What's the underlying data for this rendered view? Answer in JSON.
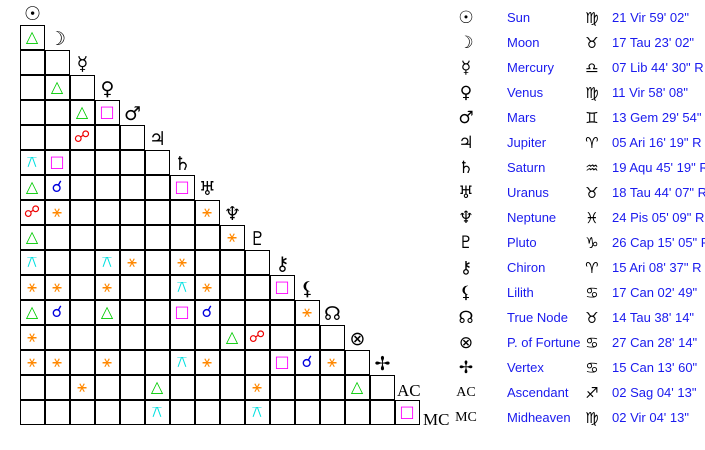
{
  "planets": [
    {
      "name": "Sun",
      "icon": "sun-icon",
      "glyph": "☉",
      "sign_icon": "virgo-icon",
      "sign_glyph": "♍",
      "position": "21 Vir 59' 02\""
    },
    {
      "name": "Moon",
      "icon": "moon-icon",
      "glyph": "☽",
      "sign_icon": "taurus-icon",
      "sign_glyph": "♉",
      "position": "17 Tau 23' 02\""
    },
    {
      "name": "Mercury",
      "icon": "mercury-icon",
      "glyph": "☿",
      "sign_icon": "libra-icon",
      "sign_glyph": "♎",
      "position": "07 Lib 44' 30\" R"
    },
    {
      "name": "Venus",
      "icon": "venus-icon",
      "glyph": "♀",
      "sign_icon": "virgo-icon",
      "sign_glyph": "♍",
      "position": "11 Vir 58' 08\""
    },
    {
      "name": "Mars",
      "icon": "mars-icon",
      "glyph": "♂",
      "sign_icon": "gemini-icon",
      "sign_glyph": "♊",
      "position": "13 Gem 29' 54\""
    },
    {
      "name": "Jupiter",
      "icon": "jupiter-icon",
      "glyph": "♃",
      "sign_icon": "aries-icon",
      "sign_glyph": "♈",
      "position": "05 Ari 16' 19\" R"
    },
    {
      "name": "Saturn",
      "icon": "saturn-icon",
      "glyph": "♄",
      "sign_icon": "aquarius-icon",
      "sign_glyph": "♒",
      "position": "19 Aqu 45' 19\" R"
    },
    {
      "name": "Uranus",
      "icon": "uranus-icon",
      "glyph": "♅",
      "sign_icon": "taurus-icon",
      "sign_glyph": "♉",
      "position": "18 Tau 44' 07\" R"
    },
    {
      "name": "Neptune",
      "icon": "neptune-icon",
      "glyph": "♆",
      "sign_icon": "pisces-icon",
      "sign_glyph": "♓",
      "position": "24 Pis 05' 09\" R"
    },
    {
      "name": "Pluto",
      "icon": "pluto-icon",
      "glyph": "♇",
      "sign_icon": "capricorn-icon",
      "sign_glyph": "♑",
      "position": "26 Cap 15' 05\" R"
    },
    {
      "name": "Chiron",
      "icon": "chiron-icon",
      "glyph": "⚷",
      "sign_icon": "aries-icon",
      "sign_glyph": "♈",
      "position": "15 Ari 08' 37\" R"
    },
    {
      "name": "Lilith",
      "icon": "lilith-icon",
      "glyph": "⚸",
      "sign_icon": "cancer-icon",
      "sign_glyph": "♋",
      "position": "17 Can 02' 49\""
    },
    {
      "name": "True Node",
      "icon": "true-node-icon",
      "glyph": "☊",
      "sign_icon": "taurus-icon",
      "sign_glyph": "♉",
      "position": "14 Tau 38' 14\""
    },
    {
      "name": "P. of Fortune",
      "icon": "part-of-fortune-icon",
      "glyph": "⊗",
      "sign_icon": "cancer-icon",
      "sign_glyph": "♋",
      "position": "27 Can 28' 14\""
    },
    {
      "name": "Vertex",
      "icon": "vertex-icon",
      "glyph": "✢",
      "sign_icon": "cancer-icon",
      "sign_glyph": "♋",
      "position": "15 Can 13' 60\""
    },
    {
      "name": "Ascendant",
      "icon": "ascendant-icon",
      "glyph": "AC",
      "sign_icon": "sagittarius-icon",
      "sign_glyph": "♐",
      "position": "02 Sag 04' 13\""
    },
    {
      "name": "Midheaven",
      "icon": "midheaven-icon",
      "glyph": "MC",
      "sign_icon": "virgo-icon",
      "sign_glyph": "♍",
      "position": "02 Vir 04' 13\""
    }
  ],
  "aspect_types": {
    "conjunction": {
      "glyph": "☌",
      "color": "#0000dd"
    },
    "opposition": {
      "glyph": "☍",
      "color": "#ee0000"
    },
    "trine": {
      "glyph": "△",
      "color": "#00cc00"
    },
    "square": {
      "glyph": "□",
      "color": "#ff00ff"
    },
    "sextile": {
      "glyph": "⚹",
      "color": "#ff8800"
    },
    "quincunx": {
      "glyph": "⚻",
      "color": "#00e0e0"
    }
  },
  "aspects": [
    [
      "Moon",
      "Sun",
      "trine"
    ],
    [
      "Venus",
      "Moon",
      "trine"
    ],
    [
      "Mars",
      "Mercury",
      "trine"
    ],
    [
      "Mars",
      "Venus",
      "square"
    ],
    [
      "Jupiter",
      "Mercury",
      "opposition"
    ],
    [
      "Saturn",
      "Sun",
      "quincunx"
    ],
    [
      "Saturn",
      "Moon",
      "square"
    ],
    [
      "Uranus",
      "Sun",
      "trine"
    ],
    [
      "Uranus",
      "Moon",
      "conjunction"
    ],
    [
      "Uranus",
      "Saturn",
      "square"
    ],
    [
      "Neptune",
      "Sun",
      "opposition"
    ],
    [
      "Neptune",
      "Moon",
      "sextile"
    ],
    [
      "Neptune",
      "Uranus",
      "sextile"
    ],
    [
      "Pluto",
      "Sun",
      "trine"
    ],
    [
      "Pluto",
      "Neptune",
      "sextile"
    ],
    [
      "Chiron",
      "Sun",
      "quincunx"
    ],
    [
      "Chiron",
      "Venus",
      "quincunx"
    ],
    [
      "Chiron",
      "Mars",
      "sextile"
    ],
    [
      "Chiron",
      "Saturn",
      "sextile"
    ],
    [
      "Lilith",
      "Sun",
      "sextile"
    ],
    [
      "Lilith",
      "Moon",
      "sextile"
    ],
    [
      "Lilith",
      "Venus",
      "sextile"
    ],
    [
      "Lilith",
      "Saturn",
      "quincunx"
    ],
    [
      "Lilith",
      "Uranus",
      "sextile"
    ],
    [
      "Lilith",
      "Chiron",
      "square"
    ],
    [
      "True Node",
      "Sun",
      "trine"
    ],
    [
      "True Node",
      "Moon",
      "conjunction"
    ],
    [
      "True Node",
      "Venus",
      "trine"
    ],
    [
      "True Node",
      "Saturn",
      "square"
    ],
    [
      "True Node",
      "Uranus",
      "conjunction"
    ],
    [
      "True Node",
      "Lilith",
      "sextile"
    ],
    [
      "P. of Fortune",
      "Sun",
      "sextile"
    ],
    [
      "P. of Fortune",
      "Neptune",
      "trine"
    ],
    [
      "P. of Fortune",
      "Pluto",
      "opposition"
    ],
    [
      "Vertex",
      "Sun",
      "sextile"
    ],
    [
      "Vertex",
      "Moon",
      "sextile"
    ],
    [
      "Vertex",
      "Venus",
      "sextile"
    ],
    [
      "Vertex",
      "Saturn",
      "quincunx"
    ],
    [
      "Vertex",
      "Uranus",
      "sextile"
    ],
    [
      "Vertex",
      "Chiron",
      "square"
    ],
    [
      "Vertex",
      "Lilith",
      "conjunction"
    ],
    [
      "Vertex",
      "True Node",
      "sextile"
    ],
    [
      "Ascendant",
      "Mercury",
      "sextile"
    ],
    [
      "Ascendant",
      "Jupiter",
      "trine"
    ],
    [
      "Ascendant",
      "Pluto",
      "sextile"
    ],
    [
      "Ascendant",
      "P. of Fortune",
      "trine"
    ],
    [
      "Midheaven",
      "Jupiter",
      "quincunx"
    ],
    [
      "Midheaven",
      "Pluto",
      "quincunx"
    ],
    [
      "Midheaven",
      "Ascendant",
      "square"
    ]
  ]
}
